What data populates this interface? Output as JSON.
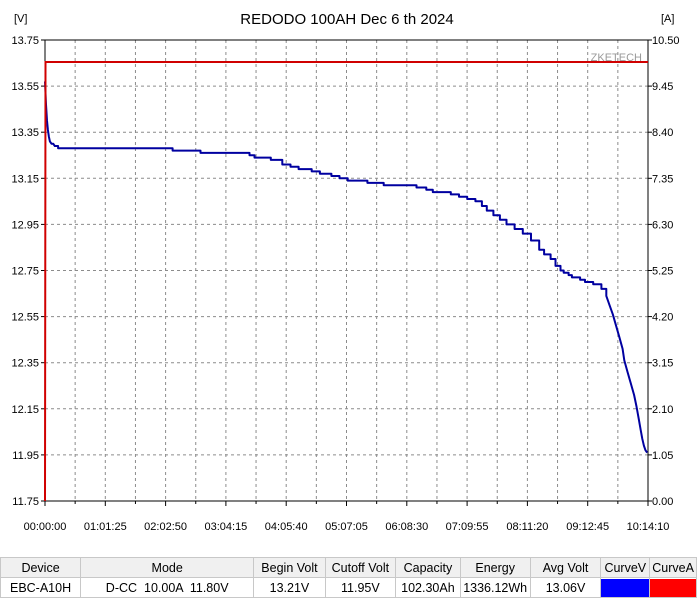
{
  "chart_data": {
    "type": "line",
    "title": "REDODO 100AH Dec 6 th 2024",
    "y_left_unit": "[V]",
    "y_right_unit": "[A]",
    "watermark": "ZKETECH",
    "x_ticks": [
      "00:00:00",
      "01:01:25",
      "02:02:50",
      "03:04:15",
      "04:05:40",
      "05:07:05",
      "06:08:30",
      "07:09:55",
      "08:11:20",
      "09:12:45",
      "10:14:10"
    ],
    "x_range_seconds": [
      0,
      36850
    ],
    "y_left_ticks": [
      "13.75",
      "13.55",
      "13.35",
      "13.15",
      "12.95",
      "12.75",
      "12.55",
      "12.35",
      "12.15",
      "11.95",
      "11.75"
    ],
    "y_left_range": [
      11.75,
      13.75
    ],
    "y_right_ticks": [
      "10.50",
      "9.45",
      "8.40",
      "7.35",
      "6.30",
      "5.25",
      "4.20",
      "3.15",
      "2.10",
      "1.05",
      "0.00"
    ],
    "y_right_range": [
      0,
      10.5
    ],
    "grid": true,
    "series": [
      {
        "axis": "left",
        "color": "#0000a0",
        "x_seconds": [
          0,
          60,
          120,
          180,
          240,
          300,
          400,
          500,
          600,
          800,
          1000,
          1200,
          1500,
          2000,
          3000,
          4000,
          5000,
          6000,
          7000,
          7200,
          7800,
          8000,
          8400,
          9000,
          9500,
          10000,
          10500,
          11000,
          11600,
          12000,
          12500,
          12800,
          13300,
          13800,
          14500,
          15000,
          15500,
          15800,
          16300,
          16800,
          17500,
          18000,
          18500,
          19000,
          19700,
          20000,
          20700,
          21300,
          22000,
          22700,
          23300,
          23700,
          24300,
          24800,
          25300,
          25800,
          26300,
          26700,
          27000,
          27400,
          27800,
          28200,
          28700,
          29200,
          29700,
          30200,
          30500,
          30900,
          31200,
          31500,
          31700,
          32000,
          32200,
          32500,
          32700,
          33000,
          33500,
          34000,
          34300,
          34500,
          34700,
          34900,
          35100,
          35300,
          35400,
          35600,
          35800,
          36000,
          36150,
          36300,
          36400,
          36500,
          36600,
          36700,
          36800
        ],
        "volts": [
          13.57,
          13.47,
          13.4,
          13.36,
          13.33,
          13.31,
          13.3,
          13.3,
          13.29,
          13.28,
          13.28,
          13.28,
          13.28,
          13.28,
          13.28,
          13.28,
          13.28,
          13.28,
          13.28,
          13.28,
          13.27,
          13.27,
          13.27,
          13.27,
          13.26,
          13.26,
          13.26,
          13.26,
          13.26,
          13.26,
          13.25,
          13.24,
          13.24,
          13.23,
          13.21,
          13.2,
          13.19,
          13.19,
          13.18,
          13.17,
          13.16,
          13.15,
          13.14,
          13.14,
          13.13,
          13.13,
          13.12,
          13.12,
          13.12,
          13.11,
          13.1,
          13.09,
          13.09,
          13.08,
          13.07,
          13.06,
          13.05,
          13.03,
          13.01,
          12.99,
          12.97,
          12.95,
          12.93,
          12.91,
          12.88,
          12.84,
          12.82,
          12.8,
          12.77,
          12.75,
          12.74,
          12.73,
          12.72,
          12.72,
          12.71,
          12.7,
          12.69,
          12.67,
          12.64,
          12.6,
          12.56,
          12.51,
          12.46,
          12.41,
          12.36,
          12.31,
          12.26,
          12.21,
          12.16,
          12.1,
          12.06,
          12.02,
          11.99,
          11.97,
          11.96
        ]
      },
      {
        "axis": "right",
        "color": "#d00000",
        "x_seconds": [
          0,
          30,
          36850
        ],
        "amps": [
          0,
          10.0,
          10.0
        ]
      }
    ]
  },
  "summary_table": {
    "headers": [
      "Device",
      "Mode",
      "Begin Volt",
      "Cutoff Volt",
      "Capacity",
      "Energy",
      "Avg Volt",
      "CurveV",
      "CurveA"
    ],
    "row": [
      "EBC-A10H",
      "D-CC  10.00A  11.80V",
      "13.21V",
      "11.95V",
      "102.30Ah",
      "1336.12Wh",
      "13.06V"
    ],
    "curve_colors": [
      "#0000ff",
      "#ff0000"
    ]
  }
}
